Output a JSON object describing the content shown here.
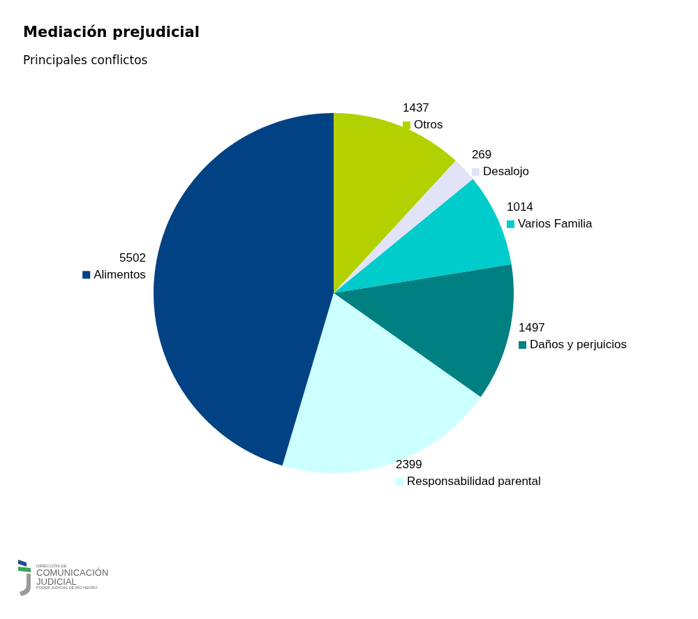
{
  "chart_data": {
    "type": "pie",
    "title": "Mediación prejudicial",
    "subtitle": "Principales conflictos",
    "categories": [
      "Otros",
      "Desalojo",
      "Varios Familia",
      "Daños y perjuicios",
      "Responsabilidad parental",
      "Alimentos"
    ],
    "values": [
      1437,
      269,
      1014,
      1497,
      2399,
      5502
    ],
    "colors": [
      "#b3d100",
      "#e3e3f7",
      "#00cccc",
      "#008080",
      "#ccffff",
      "#004283"
    ],
    "data_labels": true,
    "legend": false,
    "annotations": [
      "DIRECCIÓN DE",
      "COMUNICACIÓN",
      "JUDICIAL",
      "PODER JUDICIAL DE RÍO NEGRO"
    ]
  }
}
